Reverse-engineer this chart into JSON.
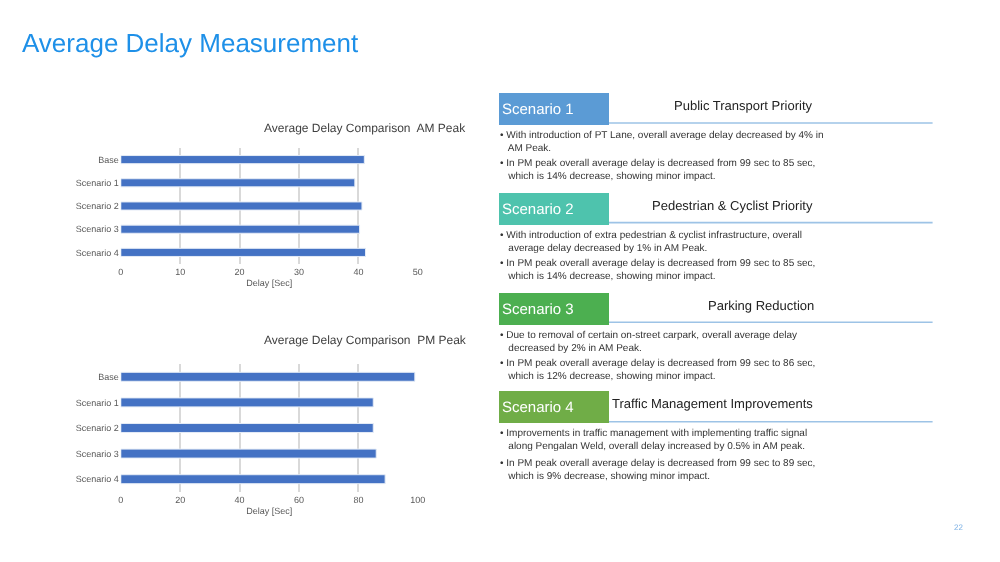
{
  "chart_data": [
    {
      "type": "bar",
      "orientation": "horizontal",
      "title": "Average Delay Comparison  AM Peak",
      "xlabel": "Delay [Sec]",
      "categories": [
        "Base",
        "Scenario 1",
        "Scenario 2",
        "Scenario 3",
        "Scenario 4"
      ],
      "values": [
        41,
        39.4,
        40.6,
        40.2,
        41.2
      ],
      "color": "#4472c4",
      "xlim": [
        0,
        50
      ],
      "xticks": [
        0,
        10,
        20,
        30,
        40,
        50
      ],
      "grid": "x"
    },
    {
      "type": "bar",
      "orientation": "horizontal",
      "title": "Average Delay Comparison  PM Peak",
      "xlabel": "Delay [Sec]",
      "categories": [
        "Base",
        "Scenario 1",
        "Scenario 2",
        "Scenario 3",
        "Scenario 4"
      ],
      "values": [
        99,
        85,
        85,
        86,
        89
      ],
      "color": "#4472c4",
      "xlim": [
        0,
        100
      ],
      "xticks": [
        0,
        20,
        40,
        60,
        80,
        100
      ],
      "grid": "x"
    },
    {
      "type": "other",
      "title": "Average Delay Measurement",
      "annotations": [
        "Scenario 1",
        "Public Transport Priority",
        "• With introduction of PT Lane, overall average delay decreased by 4% in AM Peak.",
        "• In PM peak overall average delay is decreased from 99 sec to 85 sec, which is 14% decrease, showing minor impact.",
        "Scenario 2",
        "Pedestrian & Cyclist Priority",
        "• With introduction of extra pedestrian & cyclist infrastructure, overall average delay decreased by 1% in AM Peak.",
        "• In PM peak overall average delay is decreased from 99 sec to 85 sec, which is 14% decrease, showing minor impact.",
        "Scenario 3",
        "Parking Reduction",
        "• Due to removal of certain on-street carpark, overall average delay decreased by 2% in AM Peak.",
        "• In PM peak overall average delay is decreased from 99 sec to 86 sec, which is 12% decrease, showing minor impact.",
        "Scenario 4",
        "Traffic Management Improvements",
        "• Improvements in traffic management with implementing traffic signal along Pengalan Weld, overall delay increased by 0.5% in AM peak.",
        "• In PM peak overall average delay is decreased from 99 sec to 89 sec, which is 9% decrease, showing minor impact.",
        "22"
      ]
    }
  ]
}
